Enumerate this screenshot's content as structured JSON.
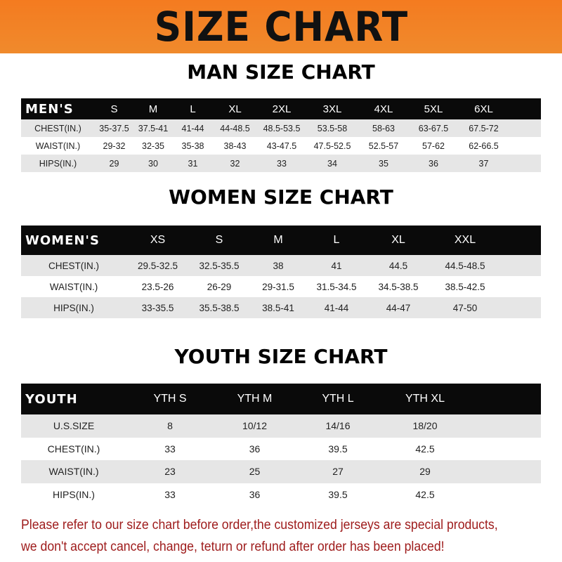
{
  "title": "SIZE CHART",
  "colors": {
    "banner": "#f47b20",
    "header_row": "#0a0a0a",
    "stripe": "#e6e6e6",
    "note_text": "#9e1b1b"
  },
  "men": {
    "title": "MAN SIZE CHART",
    "header": [
      "MEN'S",
      "S",
      "M",
      "L",
      "XL",
      "2XL",
      "3XL",
      "4XL",
      "5XL",
      "6XL"
    ],
    "rows": [
      [
        "CHEST(IN.)",
        "35-37.5",
        "37.5-41",
        "41-44",
        "44-48.5",
        "48.5-53.5",
        "53.5-58",
        "58-63",
        "63-67.5",
        "67.5-72"
      ],
      [
        "WAIST(IN.)",
        "29-32",
        "32-35",
        "35-38",
        "38-43",
        "43-47.5",
        "47.5-52.5",
        "52.5-57",
        "57-62",
        "62-66.5"
      ],
      [
        "HIPS(IN.)",
        "29",
        "30",
        "31",
        "32",
        "33",
        "34",
        "35",
        "36",
        "37"
      ]
    ]
  },
  "women": {
    "title": "WOMEN SIZE CHART",
    "header": [
      "WOMEN'S",
      "XS",
      "S",
      "M",
      "L",
      "XL",
      "XXL"
    ],
    "rows": [
      [
        "CHEST(IN.)",
        "29.5-32.5",
        "32.5-35.5",
        "38",
        "41",
        "44.5",
        "44.5-48.5"
      ],
      [
        "WAIST(IN.)",
        "23.5-26",
        "26-29",
        "29-31.5",
        "31.5-34.5",
        "34.5-38.5",
        "38.5-42.5"
      ],
      [
        "HIPS(IN.)",
        "33-35.5",
        "35.5-38.5",
        "38.5-41",
        "41-44",
        "44-47",
        "47-50"
      ]
    ]
  },
  "youth": {
    "title": "YOUTH SIZE CHART",
    "header": [
      "YOUTH",
      "YTH S",
      "YTH M",
      "YTH L",
      "YTH XL"
    ],
    "rows": [
      [
        "U.S.SIZE",
        "8",
        "10/12",
        "14/16",
        "18/20"
      ],
      [
        "CHEST(IN.)",
        "33",
        "36",
        "39.5",
        "42.5"
      ],
      [
        "WAIST(IN.)",
        "23",
        "25",
        "27",
        "29"
      ],
      [
        "HIPS(IN.)",
        "33",
        "36",
        "39.5",
        "42.5"
      ]
    ]
  },
  "note": {
    "line1": "Please refer to our size chart before order,the customized jerseys are special products,",
    "line2": "we don't accept cancel, change, teturn or refund after order has been placed!"
  }
}
